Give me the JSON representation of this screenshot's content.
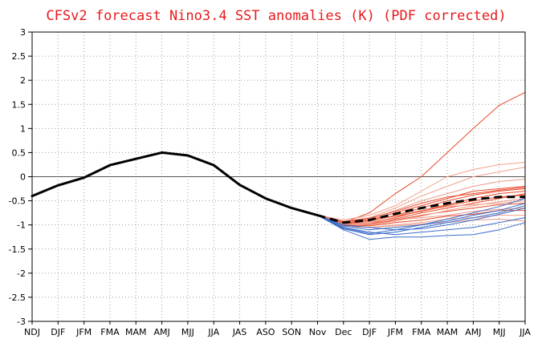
{
  "chart_data": {
    "type": "line",
    "title": "CFSv2 forecast Nino3.4 SST anomalies (K) (PDF corrected)",
    "xlabel": "",
    "ylabel": "",
    "ylim": [
      -3,
      3
    ],
    "yticks": [
      3,
      2.5,
      2,
      1.5,
      1,
      0.5,
      0,
      -0.5,
      -1,
      -1.5,
      -2,
      -2.5,
      -3
    ],
    "ytick_labels": [
      "3",
      "2.5",
      "2",
      "1.5",
      "1",
      "0.5",
      "0",
      "-0.5",
      "-1",
      "-1.5",
      "-2",
      "-2.5",
      "-3"
    ],
    "categories": [
      "NDJ",
      "DJF",
      "JFM",
      "FMA",
      "MAM",
      "AMJ",
      "MJJ",
      "JJA",
      "JAS",
      "ASO",
      "SON",
      "Nov",
      "Dec",
      "DJF",
      "JFM",
      "FMA",
      "MAM",
      "AMJ",
      "MJJ",
      "JJA"
    ],
    "grid": true,
    "zero_line": true,
    "colors": {
      "title": "#e8191c",
      "observed": "#000000",
      "ensemble_mean": "#000000",
      "member_red": "#e84a2a",
      "member_lightred": "#f2a08a",
      "member_salmon": "#e89a8a",
      "member_blue": "#3a6cc8",
      "zero_line": "#555555",
      "grid": "#9a9a9a"
    },
    "observed": {
      "name": "Observed",
      "start_index": 0,
      "values": [
        -0.4,
        -0.18,
        -0.02,
        0.24,
        0.37,
        0.5,
        0.44,
        0.24,
        -0.17,
        -0.45,
        -0.65,
        -0.8
      ]
    },
    "ensemble_mean": {
      "name": "Ensemble mean",
      "start_index": 11,
      "values": [
        -0.8,
        -0.95,
        -0.9,
        -0.77,
        -0.65,
        -0.55,
        -0.47,
        -0.42,
        -0.42
      ]
    },
    "members": [
      {
        "color_key": "member_red",
        "start_index": 11,
        "values": [
          -0.8,
          -0.95,
          -0.75,
          -0.35,
          0.0,
          0.5,
          1.0,
          1.48,
          1.75
        ]
      },
      {
        "color_key": "member_lightred",
        "start_index": 11,
        "values": [
          -0.8,
          -0.9,
          -0.8,
          -0.6,
          -0.3,
          0.0,
          0.15,
          0.25,
          0.3
        ]
      },
      {
        "color_key": "member_lightred",
        "start_index": 11,
        "values": [
          -0.8,
          -0.92,
          -0.85,
          -0.65,
          -0.4,
          -0.2,
          0.0,
          0.1,
          0.2
        ]
      },
      {
        "color_key": "member_salmon",
        "start_index": 11,
        "values": [
          -0.8,
          -0.94,
          -0.88,
          -0.7,
          -0.5,
          -0.35,
          -0.2,
          -0.1,
          -0.05
        ]
      },
      {
        "color_key": "member_red",
        "start_index": 11,
        "values": [
          -0.8,
          -0.96,
          -0.9,
          -0.75,
          -0.6,
          -0.45,
          -0.3,
          -0.25,
          -0.2
        ]
      },
      {
        "color_key": "member_red",
        "start_index": 11,
        "values": [
          -0.8,
          -0.98,
          -0.92,
          -0.8,
          -0.65,
          -0.5,
          -0.38,
          -0.3,
          -0.25
        ]
      },
      {
        "color_key": "member_red",
        "start_index": 11,
        "values": [
          -0.8,
          -0.97,
          -0.95,
          -0.85,
          -0.7,
          -0.58,
          -0.45,
          -0.35,
          -0.3
        ]
      },
      {
        "color_key": "member_red",
        "start_index": 11,
        "values": [
          -0.8,
          -1.0,
          -0.98,
          -0.88,
          -0.75,
          -0.65,
          -0.55,
          -0.45,
          -0.35
        ]
      },
      {
        "color_key": "member_lightred",
        "start_index": 11,
        "values": [
          -0.8,
          -0.95,
          -0.93,
          -0.8,
          -0.7,
          -0.62,
          -0.58,
          -0.55,
          -0.5
        ]
      },
      {
        "color_key": "member_red",
        "start_index": 11,
        "values": [
          -0.8,
          -1.02,
          -1.0,
          -0.9,
          -0.8,
          -0.72,
          -0.65,
          -0.58,
          -0.55
        ]
      },
      {
        "color_key": "member_salmon",
        "start_index": 11,
        "values": [
          -0.8,
          -0.93,
          -0.95,
          -0.9,
          -0.85,
          -0.8,
          -0.72,
          -0.68,
          -0.65
        ]
      },
      {
        "color_key": "member_red",
        "start_index": 11,
        "values": [
          -0.8,
          -0.99,
          -1.02,
          -0.95,
          -0.9,
          -0.82,
          -0.78,
          -0.7,
          -0.7
        ]
      },
      {
        "color_key": "member_lightred",
        "start_index": 11,
        "values": [
          -0.8,
          -1.0,
          -1.05,
          -1.0,
          -0.95,
          -0.88,
          -0.85,
          -0.8,
          -0.8
        ]
      },
      {
        "color_key": "member_salmon",
        "start_index": 11,
        "values": [
          -0.8,
          -1.03,
          -1.05,
          -1.02,
          -0.98,
          -0.95,
          -0.9,
          -0.88,
          -0.92
        ]
      },
      {
        "color_key": "member_red",
        "start_index": 11,
        "values": [
          -0.8,
          -0.96,
          -0.9,
          -0.82,
          -0.72,
          -0.6,
          -0.5,
          -0.42,
          -0.38
        ]
      },
      {
        "color_key": "member_red",
        "start_index": 11,
        "values": [
          -0.8,
          -0.94,
          -0.86,
          -0.72,
          -0.55,
          -0.42,
          -0.35,
          -0.28,
          -0.22
        ]
      },
      {
        "color_key": "member_lightred",
        "start_index": 11,
        "values": [
          -0.8,
          -0.98,
          -1.0,
          -0.92,
          -0.82,
          -0.7,
          -0.6,
          -0.52,
          -0.45
        ]
      },
      {
        "color_key": "member_blue",
        "start_index": 11,
        "values": [
          -0.8,
          -1.05,
          -1.15,
          -1.2,
          -1.15,
          -1.1,
          -1.05,
          -0.95,
          -0.85
        ]
      },
      {
        "color_key": "member_blue",
        "start_index": 11,
        "values": [
          -0.8,
          -1.08,
          -1.2,
          -1.15,
          -1.05,
          -0.95,
          -0.85,
          -0.75,
          -0.6
        ]
      },
      {
        "color_key": "member_blue",
        "start_index": 11,
        "values": [
          -0.8,
          -1.1,
          -1.3,
          -1.25,
          -1.25,
          -1.22,
          -1.2,
          -1.1,
          -0.95
        ]
      },
      {
        "color_key": "member_blue",
        "start_index": 11,
        "values": [
          -0.8,
          -1.02,
          -1.1,
          -1.05,
          -1.0,
          -0.92,
          -0.8,
          -0.7,
          -0.55
        ]
      },
      {
        "color_key": "member_blue",
        "start_index": 11,
        "values": [
          -0.8,
          -1.06,
          -1.18,
          -1.1,
          -1.0,
          -0.88,
          -0.75,
          -0.62,
          -0.45
        ]
      },
      {
        "color_key": "member_blue",
        "start_index": 11,
        "values": [
          -0.8,
          -1.0,
          -1.05,
          -1.1,
          -1.08,
          -1.0,
          -0.9,
          -0.78,
          -0.65
        ]
      }
    ]
  }
}
